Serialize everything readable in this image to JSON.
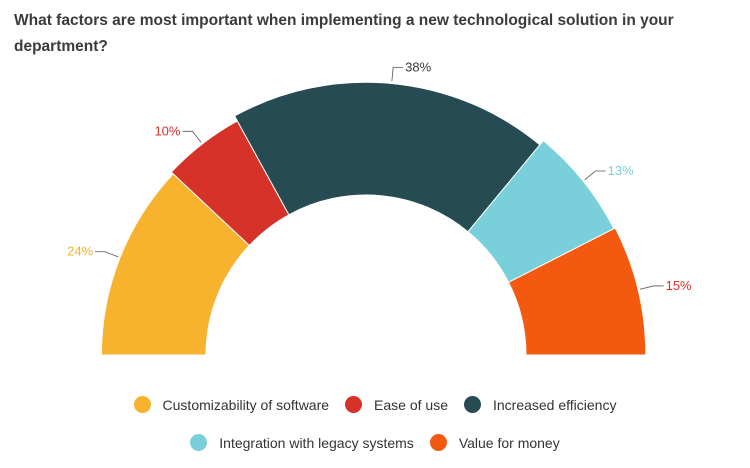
{
  "chart_data": {
    "type": "pie",
    "variant": "semi-donut",
    "title": "What factors are most important when implementing a new technological solution in your department?",
    "series": [
      {
        "name": "Customizability of software",
        "value": 24,
        "label": "24%",
        "color": "#f7b22e",
        "label_color": "#f7b22e"
      },
      {
        "name": "Ease of use",
        "value": 10,
        "label": "10%",
        "color": "#d73229",
        "label_color": "#d73229"
      },
      {
        "name": "Increased efficiency",
        "value": 38,
        "label": "38%",
        "color": "#264b52",
        "label_color": "#3a3a3a"
      },
      {
        "name": "Integration with legacy systems",
        "value": 13,
        "label": "13%",
        "color": "#79d0da",
        "label_color": "#79d0da"
      },
      {
        "name": "Value for money",
        "value": 15,
        "label": "15%",
        "color": "#f35a10",
        "label_color": "#d73229"
      }
    ],
    "legend_position": "bottom"
  }
}
